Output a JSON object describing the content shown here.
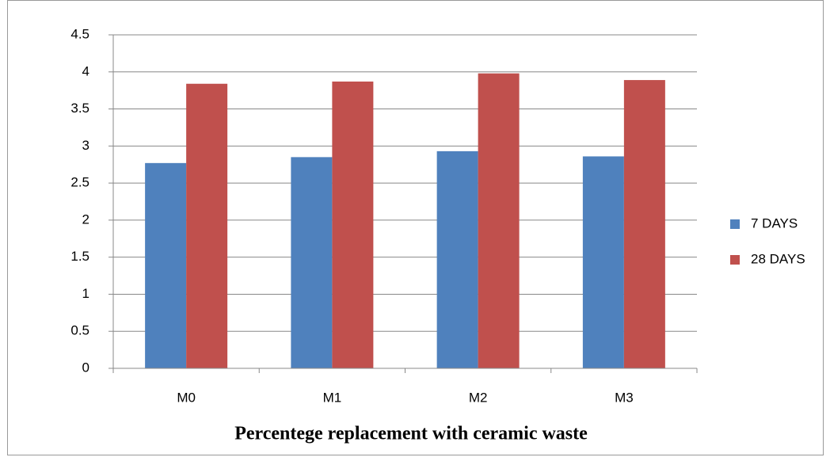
{
  "chart_data": {
    "type": "bar",
    "x_label": "Percentege replacement with ceramic waste",
    "categories": [
      "M0",
      "M1",
      "M2",
      "M3"
    ],
    "series": [
      {
        "name": "7 DAYS",
        "color": "#4f81bd",
        "values": [
          2.77,
          2.85,
          2.93,
          2.86
        ]
      },
      {
        "name": "28 DAYS",
        "color": "#c0504d",
        "values": [
          3.84,
          3.87,
          3.98,
          3.89
        ]
      }
    ],
    "ylim": [
      0,
      4.5
    ],
    "yticks": [
      0,
      0.5,
      1,
      1.5,
      2,
      2.5,
      3,
      3.5,
      4,
      4.5
    ],
    "grid": true,
    "legend": "right"
  }
}
